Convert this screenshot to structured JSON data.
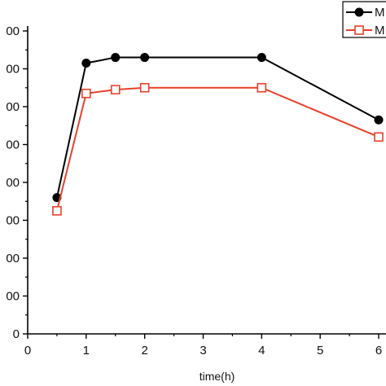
{
  "chart_data": {
    "type": "line",
    "xlabel": "time(h)",
    "ylabel": "",
    "xlim": [
      0,
      6
    ],
    "ylim": [
      0,
      800
    ],
    "x_ticks": [
      "0",
      "1",
      "2",
      "3",
      "4",
      "5",
      "6"
    ],
    "y_ticks": [
      "0",
      "00",
      "00",
      "00",
      "00",
      "00",
      "00",
      "00",
      "00"
    ],
    "grid": false,
    "legend_position": "top-right",
    "series": [
      {
        "name": "M",
        "color": "#000000",
        "marker": "filled-circle",
        "x": [
          0.5,
          1,
          1.5,
          2,
          4,
          6
        ],
        "y": [
          360,
          715,
          730,
          730,
          730,
          565
        ]
      },
      {
        "name": "M",
        "color": "#e8412c",
        "marker": "open-square",
        "x": [
          0.5,
          1,
          1.5,
          2,
          4,
          6
        ],
        "y": [
          325,
          635,
          645,
          650,
          650,
          520
        ]
      }
    ]
  }
}
